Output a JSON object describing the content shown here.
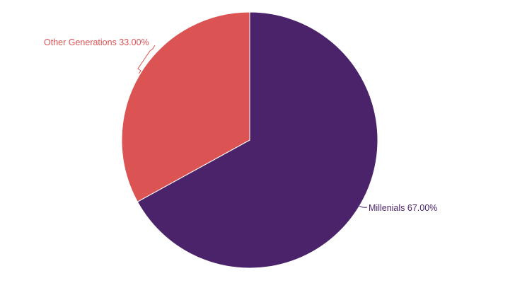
{
  "chart_data": {
    "type": "pie",
    "title": "",
    "start": "top",
    "direction": "clockwise",
    "slices": [
      {
        "label": "Millenials",
        "value": 67.0,
        "display": "Millenials 67.00%",
        "color": "#4b236a"
      },
      {
        "label": "Other Generations",
        "value": 33.0,
        "display": "Other Generations 33.00%",
        "color": "#db5353"
      }
    ]
  }
}
